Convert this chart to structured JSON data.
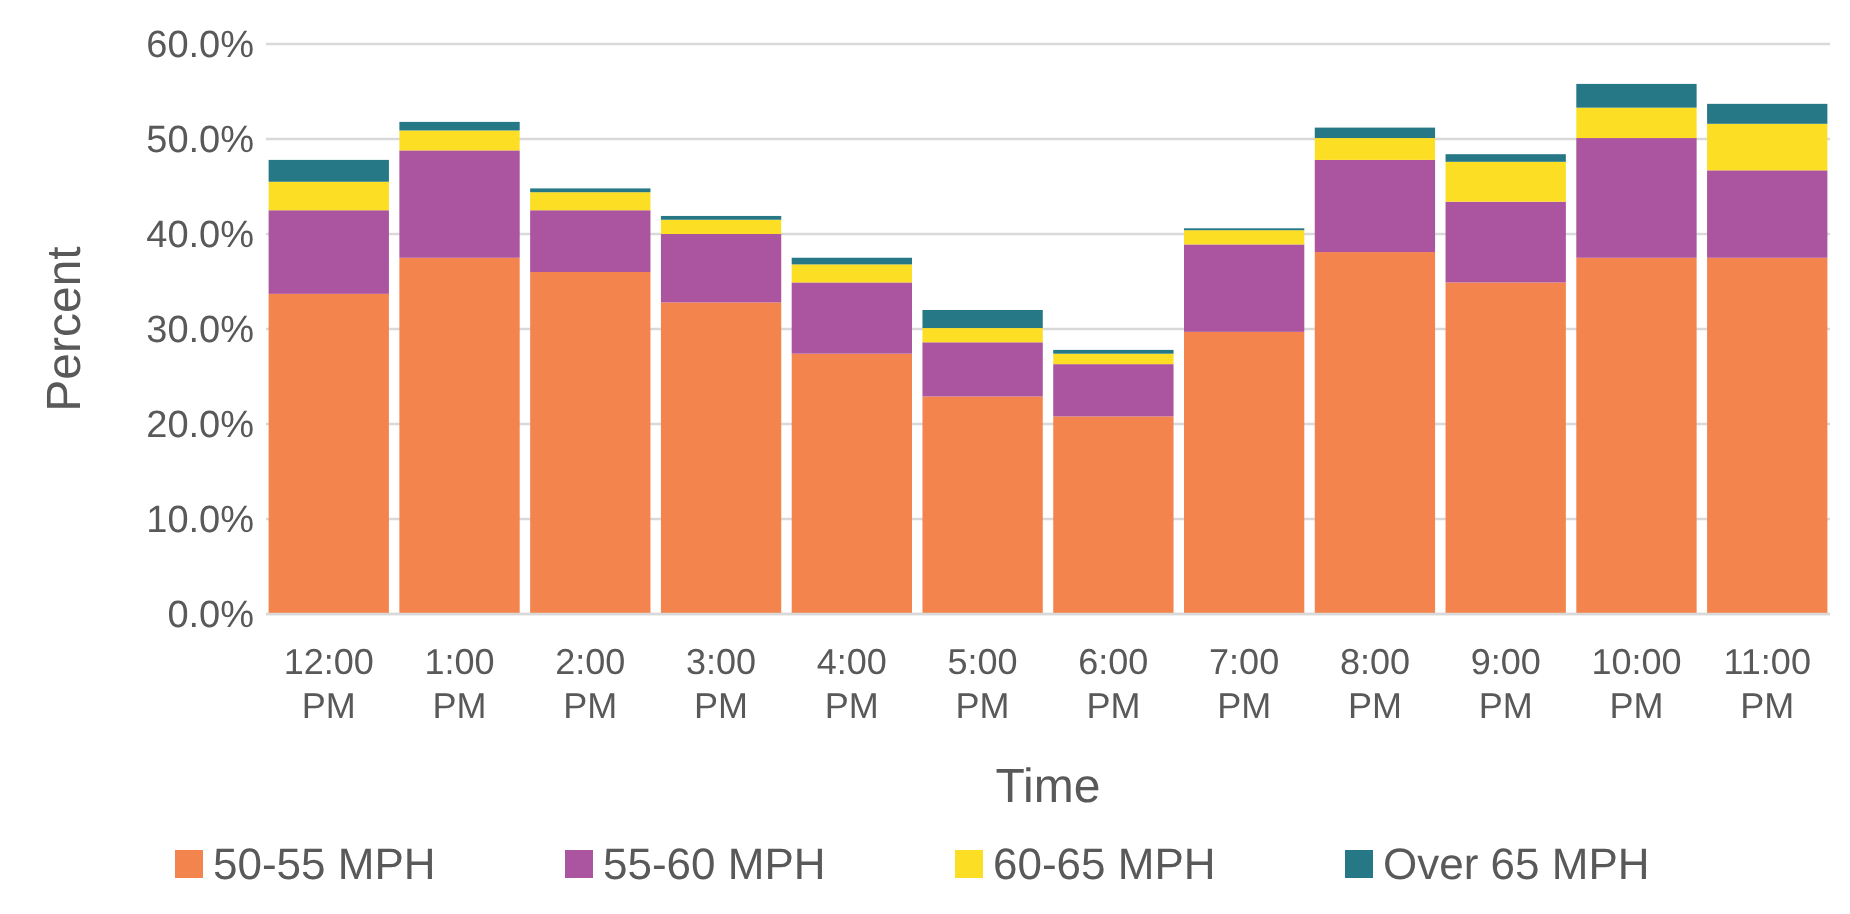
{
  "chart_data": {
    "type": "bar",
    "stacked": true,
    "xlabel": "Time",
    "ylabel": "Percent",
    "categories": [
      "12:00 PM",
      "1:00 PM",
      "2:00 PM",
      "3:00 PM",
      "4:00 PM",
      "5:00 PM",
      "6:00 PM",
      "7:00 PM",
      "8:00 PM",
      "9:00 PM",
      "10:00 PM",
      "11:00 PM"
    ],
    "series": [
      {
        "name": "50-55 MPH",
        "color": "#f4844e",
        "values": [
          33.7,
          37.5,
          36.0,
          32.8,
          27.4,
          22.9,
          20.8,
          29.7,
          38.1,
          34.9,
          37.5,
          37.5
        ]
      },
      {
        "name": "55-60 MPH",
        "color": "#ab549f",
        "values": [
          8.8,
          11.3,
          6.5,
          7.2,
          7.5,
          5.7,
          5.5,
          9.2,
          9.7,
          8.5,
          12.6,
          9.2
        ]
      },
      {
        "name": "60-65 MPH",
        "color": "#fcde24",
        "values": [
          3.0,
          2.1,
          1.9,
          1.5,
          1.9,
          1.5,
          1.1,
          1.5,
          2.3,
          4.2,
          3.2,
          4.9
        ]
      },
      {
        "name": "Over 65 MPH",
        "color": "#267886",
        "values": [
          2.3,
          0.9,
          0.4,
          0.4,
          0.7,
          1.9,
          0.4,
          0.2,
          1.1,
          0.8,
          2.5,
          2.1
        ]
      }
    ],
    "ylim": [
      0,
      60
    ],
    "yticks": [
      {
        "value": 0,
        "label": "0.0%"
      },
      {
        "value": 10,
        "label": "10.0%"
      },
      {
        "value": 20,
        "label": "20.0%"
      },
      {
        "value": 30,
        "label": "30.0%"
      },
      {
        "value": 40,
        "label": "40.0%"
      },
      {
        "value": 50,
        "label": "50.0%"
      },
      {
        "value": 60,
        "label": "60.0%"
      }
    ],
    "grid": "y",
    "legend": "bottom"
  }
}
